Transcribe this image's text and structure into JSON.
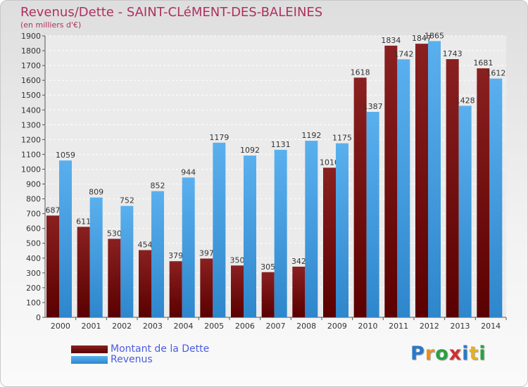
{
  "header": {
    "title": "Revenus/Dette - SAINT-CLéMENT-DES-BALEINES",
    "subtitle": "(en milliers d'€)"
  },
  "chart_data": {
    "type": "bar",
    "categories": [
      "2000",
      "2001",
      "2002",
      "2003",
      "2004",
      "2005",
      "2006",
      "2007",
      "2008",
      "2009",
      "2010",
      "2011",
      "2012",
      "2013",
      "2014"
    ],
    "series": [
      {
        "name": "Montant de la Dette",
        "color": "#7a1616",
        "values": [
          687,
          611,
          530,
          454,
          379,
          397,
          350,
          305,
          342,
          1010,
          1618,
          1834,
          1847,
          1743,
          1681
        ]
      },
      {
        "name": "Revenus",
        "color": "#4ea8e8",
        "values": [
          1059,
          809,
          752,
          852,
          944,
          1179,
          1092,
          1131,
          1192,
          1175,
          1387,
          1742,
          1865,
          1428,
          1612
        ]
      }
    ],
    "ylim": [
      0,
      1900
    ],
    "ytick_step": 100,
    "grid": true,
    "legend_position": "bottom-left"
  },
  "legend": {
    "items": [
      {
        "label": "Montant de la Dette",
        "color": "#7a1616"
      },
      {
        "label": "Revenus",
        "color": "#4ea8e8"
      }
    ]
  },
  "logo": {
    "letters": [
      {
        "ch": "P",
        "color": "#2a78c8"
      },
      {
        "ch": "r",
        "color": "#e89020"
      },
      {
        "ch": "o",
        "color": "#2aa040"
      },
      {
        "ch": "x",
        "color": "#d03030"
      },
      {
        "ch": "i",
        "color": "#2a78c8"
      },
      {
        "ch": "t",
        "color": "#e8b020"
      },
      {
        "ch": "i",
        "color": "#2aa040"
      }
    ]
  }
}
